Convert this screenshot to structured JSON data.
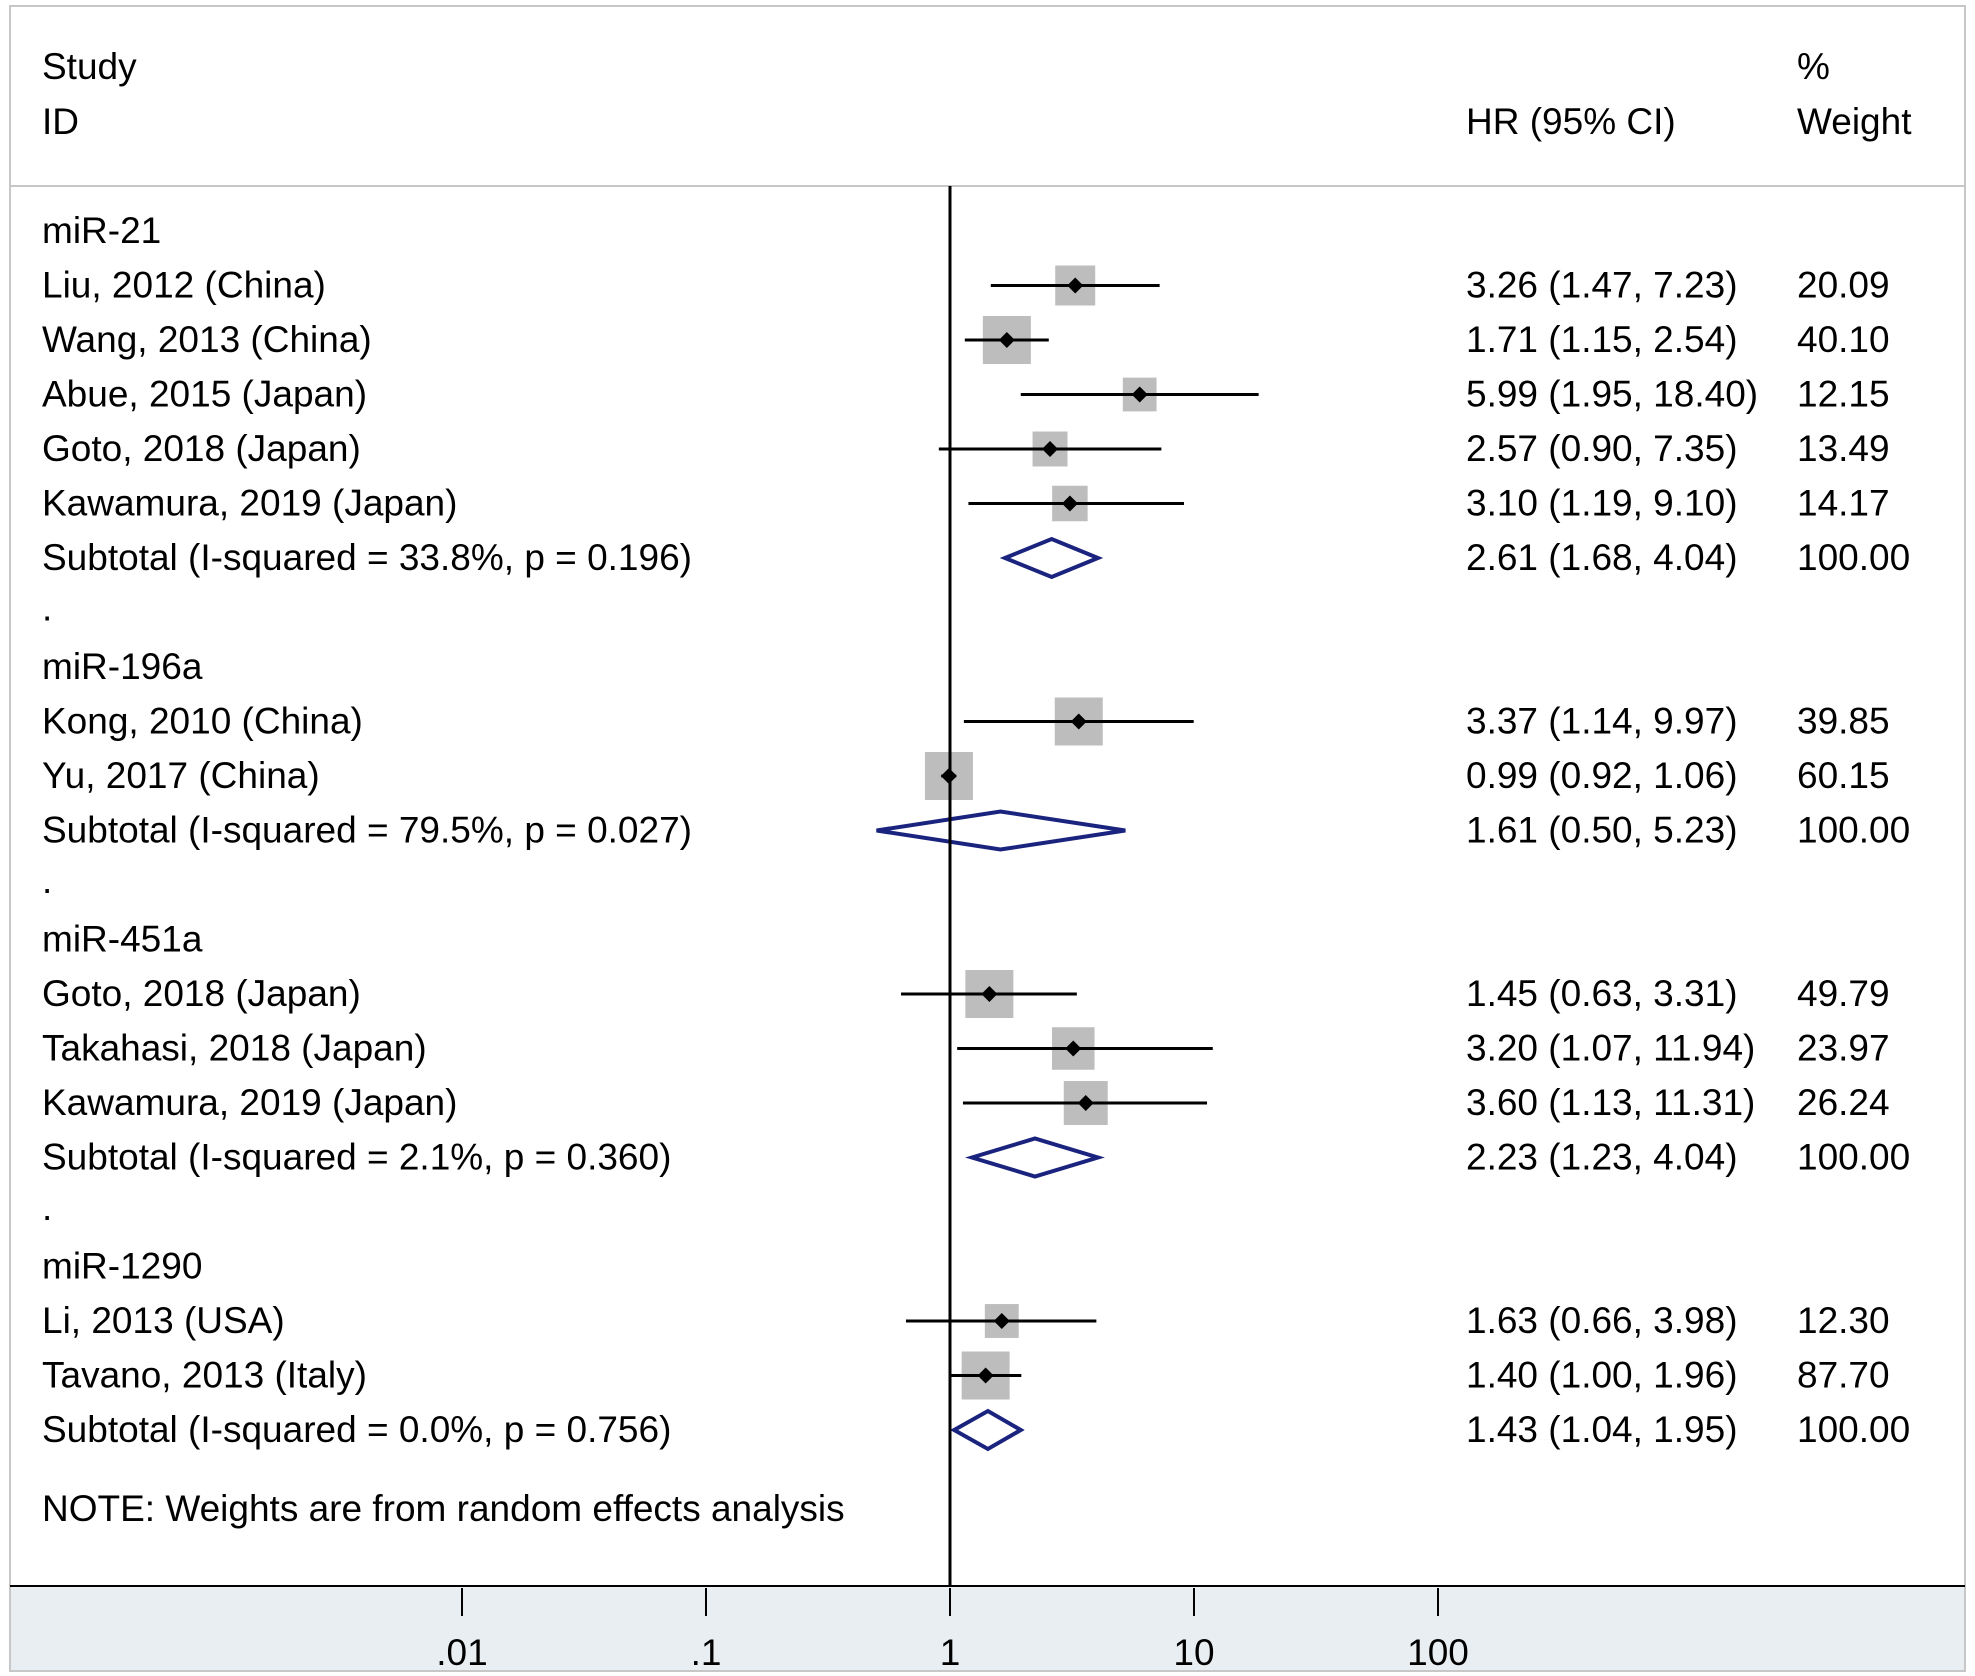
{
  "chart_data": {
    "type": "forest",
    "scale": "log",
    "xlim": [
      0.0082,
      1000
    ],
    "null_line": 1,
    "header": {
      "study_line1": "Study",
      "study_line2": "ID",
      "estimate": "HR (95% CI)",
      "weight_line1": "%",
      "weight_line2": "Weight"
    },
    "x_ticks": [
      {
        "value": 0.01,
        "label": ".01"
      },
      {
        "value": 0.1,
        "label": ".1"
      },
      {
        "value": 1,
        "label": "1"
      },
      {
        "value": 10,
        "label": "10"
      },
      {
        "value": 100,
        "label": "100"
      }
    ],
    "groups": [
      {
        "name": "miR-21",
        "studies": [
          {
            "label": "Liu, 2012 (China)",
            "hr": 3.26,
            "lo": 1.47,
            "hi": 7.23,
            "ci_text": "3.26 (1.47, 7.23)",
            "weight": "20.09"
          },
          {
            "label": "Wang, 2013 (China)",
            "hr": 1.71,
            "lo": 1.15,
            "hi": 2.54,
            "ci_text": "1.71 (1.15, 2.54)",
            "weight": "40.10"
          },
          {
            "label": "Abue, 2015 (Japan)",
            "hr": 5.99,
            "lo": 1.95,
            "hi": 18.4,
            "ci_text": "5.99 (1.95, 18.40)",
            "weight": "12.15"
          },
          {
            "label": "Goto, 2018 (Japan)",
            "hr": 2.57,
            "lo": 0.9,
            "hi": 7.35,
            "ci_text": "2.57 (0.90, 7.35)",
            "weight": "13.49"
          },
          {
            "label": "Kawamura, 2019 (Japan)",
            "hr": 3.1,
            "lo": 1.19,
            "hi": 9.1,
            "ci_text": "3.10 (1.19, 9.10)",
            "weight": "14.17"
          }
        ],
        "subtotal": {
          "label": "Subtotal  (I-squared = 33.8%, p = 0.196)",
          "hr": 2.61,
          "lo": 1.68,
          "hi": 4.04,
          "ci_text": "2.61 (1.68, 4.04)",
          "weight": "100.00"
        }
      },
      {
        "name": "miR-196a",
        "studies": [
          {
            "label": "Kong, 2010 (China)",
            "hr": 3.37,
            "lo": 1.14,
            "hi": 9.97,
            "ci_text": "3.37 (1.14, 9.97)",
            "weight": "39.85"
          },
          {
            "label": "Yu, 2017 (China)",
            "hr": 0.99,
            "lo": 0.92,
            "hi": 1.06,
            "ci_text": "0.99 (0.92, 1.06)",
            "weight": "60.15"
          }
        ],
        "subtotal": {
          "label": "Subtotal  (I-squared = 79.5%, p = 0.027)",
          "hr": 1.61,
          "lo": 0.5,
          "hi": 5.23,
          "ci_text": "1.61 (0.50, 5.23)",
          "weight": "100.00"
        }
      },
      {
        "name": "miR-451a",
        "studies": [
          {
            "label": "Goto, 2018 (Japan)",
            "hr": 1.45,
            "lo": 0.63,
            "hi": 3.31,
            "ci_text": "1.45 (0.63, 3.31)",
            "weight": "49.79"
          },
          {
            "label": "Takahasi, 2018 (Japan)",
            "hr": 3.2,
            "lo": 1.07,
            "hi": 11.94,
            "ci_text": "3.20 (1.07, 11.94)",
            "weight": "23.97"
          },
          {
            "label": "Kawamura, 2019 (Japan)",
            "hr": 3.6,
            "lo": 1.13,
            "hi": 11.31,
            "ci_text": "3.60 (1.13, 11.31)",
            "weight": "26.24"
          }
        ],
        "subtotal": {
          "label": "Subtotal  (I-squared = 2.1%, p = 0.360)",
          "hr": 2.23,
          "lo": 1.23,
          "hi": 4.04,
          "ci_text": "2.23 (1.23, 4.04)",
          "weight": "100.00"
        }
      },
      {
        "name": "miR-1290",
        "studies": [
          {
            "label": "Li, 2013 (USA)",
            "hr": 1.63,
            "lo": 0.66,
            "hi": 3.98,
            "ci_text": "1.63 (0.66, 3.98)",
            "weight": "12.30"
          },
          {
            "label": "Tavano, 2013 (Italy)",
            "hr": 1.4,
            "lo": 1.0,
            "hi": 1.96,
            "ci_text": "1.40 (1.00, 1.96)",
            "weight": "87.70"
          }
        ],
        "subtotal": {
          "label": "Subtotal  (I-squared = 0.0%, p = 0.756)",
          "hr": 1.43,
          "lo": 1.04,
          "hi": 1.95,
          "ci_text": "1.43 (1.04, 1.95)",
          "weight": "100.00"
        }
      }
    ],
    "separator": ".",
    "note": "NOTE: Weights are from random effects analysis",
    "colors": {
      "background": "#ffffff",
      "axis_band": "#e8eef1",
      "frame": "#c7c7c7",
      "box": "#bdbdbd",
      "point": "#000000",
      "ci_line": "#000000",
      "diamond": "#1a237e"
    }
  }
}
